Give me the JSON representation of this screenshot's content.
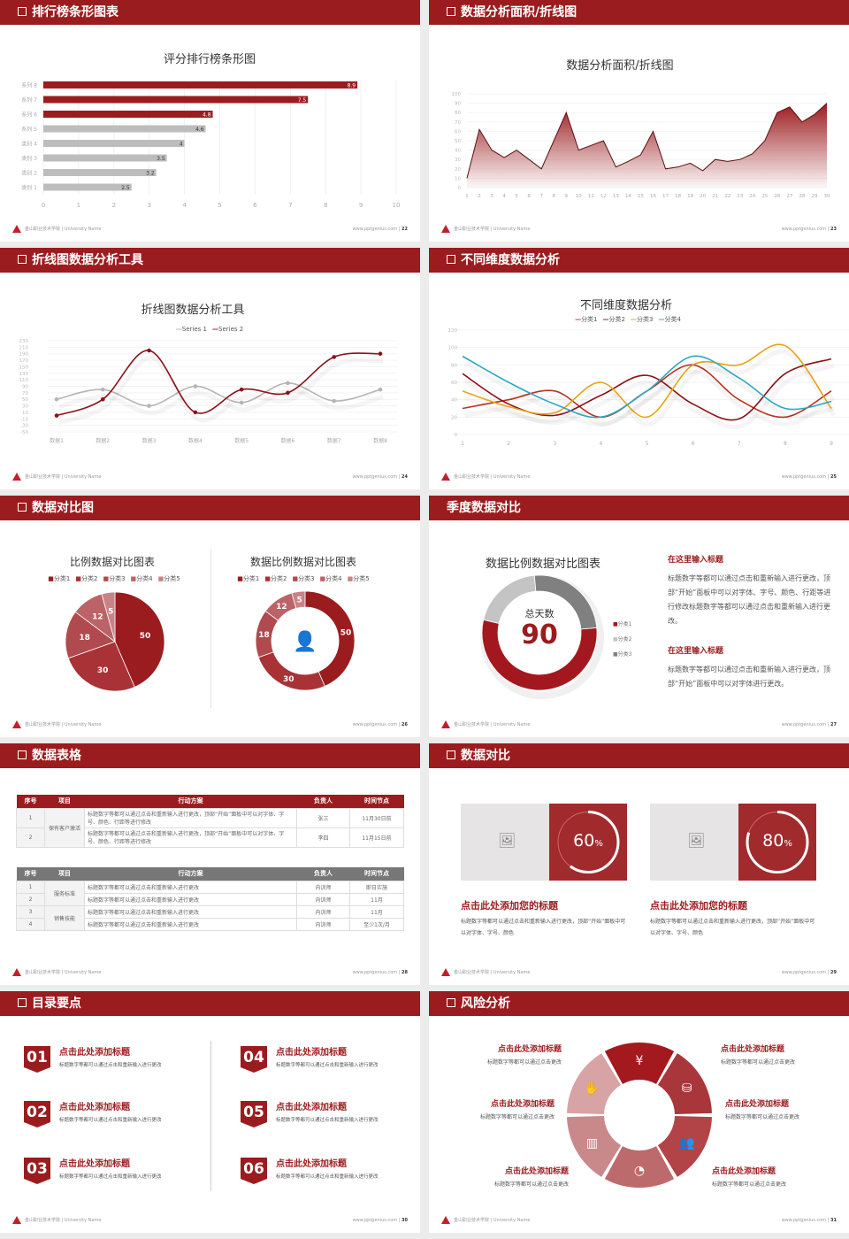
{
  "footer": {
    "school": "金山职业技术学院 | University Name",
    "site": "www.pptgenius.com"
  },
  "slides": [
    {
      "title": "排行榜条形图表",
      "page": "22",
      "chart_title": "评分排行榜条形图"
    },
    {
      "title": "数据分析面积/折线图",
      "page": "23",
      "chart_title": "数据分析面积/折线图"
    },
    {
      "title": "折线图数据分析工具",
      "page": "24",
      "chart_title": "折线图数据分析工具"
    },
    {
      "title": "不同维度数据分析",
      "page": "25",
      "chart_title": "不同维度数据分析"
    },
    {
      "title": "数据对比图",
      "page": "26",
      "chart_title_1": "比例数据对比图表",
      "chart_title_2": "数据比例数据对比图表"
    },
    {
      "title": "季度数据对比",
      "page": "27",
      "chart_title": "数据比例数据对比图表",
      "center_label": "总天数",
      "center_value": "90",
      "blocks": [
        {
          "heading": "在这里输入标题",
          "text": "标题数字等都可以通过点击和重新输入进行更改，顶部“开始”面板中可以对字体、字号、颜色、行距等进行修改标题数字等都可以通过点击和重新输入进行更改。"
        },
        {
          "heading": "在这里输入标题",
          "text": "标题数字等都可以通过点击和重新输入进行更改，顶部“开始”面板中可以对字体进行更改。"
        }
      ]
    },
    {
      "title": "数据表格",
      "page": "28",
      "table1": {
        "headers": [
          "序号",
          "项目",
          "行动方案",
          "负责人",
          "时间节点"
        ],
        "group": "保有客户激活",
        "rows": [
          [
            "1",
            "标题数字等都可以通过点击和重新输入进行更改，顶部“开始”面板中可以对字体、字号、颜色、行距等进行修改",
            "张三",
            "11月30日前"
          ],
          [
            "2",
            "标题数字等都可以通过点击和重新输入进行更改，顶部“开始”面板中可以对字体、字号、颜色、行距等进行修改",
            "李四",
            "11月15日前"
          ]
        ]
      },
      "table2": {
        "headers": [
          "序号",
          "项目",
          "行动方案",
          "负责人",
          "时间节点"
        ],
        "groups": [
          "服务标准",
          "销售技能"
        ],
        "rows": [
          [
            "1",
            "标题数字等都可以通过点击和重新输入进行更改",
            "内训师",
            "即日实施"
          ],
          [
            "2",
            "标题数字等都可以通过点击和重新输入进行更改",
            "内训师",
            "11月"
          ],
          [
            "3",
            "标题数字等都可以通过点击和重新输入进行更改",
            "内训师",
            "11月"
          ],
          [
            "4",
            "标题数字等都可以通过点击和重新输入进行更改",
            "内训师",
            "至少1次/月"
          ]
        ]
      }
    },
    {
      "title": "数据对比",
      "page": "29",
      "cards": [
        {
          "percent": 60,
          "value": "60",
          "unit": "%",
          "heading": "点击此处添加您的标题",
          "text": "标题数字等都可以通过点击和重新输入进行更改，顶部“开始”面板中可以对字体、字号、颜色"
        },
        {
          "percent": 80,
          "value": "80",
          "unit": "%",
          "heading": "点击此处添加您的标题",
          "text": "标题数字等都可以通过点击和重新输入进行更改，顶部“开始”面板中可以对字体、字号、颜色"
        }
      ]
    },
    {
      "title": "目录要点",
      "page": "30",
      "items": [
        {
          "num": "01",
          "heading": "点击此处添加标题",
          "text": "标题数字等都可以通过点击和重新输入进行更改"
        },
        {
          "num": "02",
          "heading": "点击此处添加标题",
          "text": "标题数字等都可以通过点击和重新输入进行更改"
        },
        {
          "num": "03",
          "heading": "点击此处添加标题",
          "text": "标题数字等都可以通过点击和重新输入进行更改"
        },
        {
          "num": "04",
          "heading": "点击此处添加标题",
          "text": "标题数字等都可以通过点击和重新输入进行更改"
        },
        {
          "num": "05",
          "heading": "点击此处添加标题",
          "text": "标题数字等都可以通过点击和重新输入进行更改"
        },
        {
          "num": "06",
          "heading": "点击此处添加标题",
          "text": "标题数字等都可以通过点击和重新输入进行更改"
        }
      ]
    },
    {
      "title": "风险分析",
      "page": "31",
      "items": [
        {
          "heading": "点击此处添加标题",
          "text": "标题数字等都可以通过点击更改",
          "icon": "money-bag-icon"
        },
        {
          "heading": "点击此处添加标题",
          "text": "标题数字等都可以通过点击更改",
          "icon": "coins-icon"
        },
        {
          "heading": "点击此处添加标题",
          "text": "标题数字等都可以通过点击更改",
          "icon": "users-icon"
        },
        {
          "heading": "点击此处添加标题",
          "text": "标题数字等都可以通过点击更改",
          "icon": "pie-chart-icon"
        },
        {
          "heading": "点击此处添加标题",
          "text": "标题数字等都可以通过点击更改",
          "icon": "building-icon"
        },
        {
          "heading": "点击此处添加标题",
          "text": "标题数字等都可以通过点击更改",
          "icon": "hand-money-icon"
        }
      ]
    }
  ],
  "colors": {
    "brand": "#9b1c1f",
    "gray": "#bdbdbd",
    "dark_gray": "#7a7a7a"
  },
  "chart_data": [
    {
      "type": "bar",
      "orientation": "horizontal",
      "title": "评分排行榜条形图",
      "categories": [
        "系列 8",
        "系列 7",
        "系列 6",
        "系列 5",
        "类别 4",
        "类别 3",
        "类别 2",
        "类别 1"
      ],
      "values": [
        8.9,
        7.5,
        4.8,
        4.6,
        4,
        3.5,
        3.2,
        2.5
      ],
      "value_labels": [
        "8.9",
        "7.5",
        "4.8",
        "4.6",
        "4",
        "3.5",
        "3.2",
        "2.5"
      ],
      "highlight_top": 3,
      "xlim": [
        0,
        10
      ],
      "xticks": [
        "0",
        "1",
        "2",
        "3",
        "4",
        "5",
        "6",
        "7",
        "8",
        "9",
        "10"
      ]
    },
    {
      "type": "area",
      "title": "数据分析面积/折线图",
      "x": [
        "1",
        "2",
        "3",
        "4",
        "5",
        "6",
        "7",
        "8",
        "9",
        "10",
        "11",
        "12",
        "13",
        "14",
        "15",
        "16",
        "17",
        "18",
        "19",
        "20",
        "21",
        "22",
        "23",
        "24",
        "25",
        "26",
        "27",
        "28",
        "29",
        "30"
      ],
      "values": [
        10,
        62,
        40,
        32,
        40,
        30,
        20,
        50,
        80,
        40,
        45,
        50,
        22,
        28,
        35,
        60,
        20,
        22,
        26,
        18,
        30,
        28,
        30,
        36,
        50,
        80,
        86,
        70,
        78,
        90
      ],
      "ylim": [
        0,
        100
      ],
      "yticks": [
        "0",
        "10",
        "20",
        "30",
        "40",
        "50",
        "60",
        "70",
        "80",
        "90",
        "100"
      ]
    },
    {
      "type": "line",
      "smooth": true,
      "title": "折线图数据分析工具",
      "categories": [
        "数据1",
        "数据2",
        "数据3",
        "数据4",
        "数据5",
        "数据6",
        "数据7",
        "数据8"
      ],
      "series": [
        {
          "name": "Series 1",
          "values": [
            50,
            80,
            30,
            90,
            40,
            100,
            45,
            80
          ],
          "color": "#b5b5b5"
        },
        {
          "name": "Series 2",
          "values": [
            0,
            50,
            200,
            10,
            80,
            70,
            180,
            190
          ],
          "color": "#8b1218"
        }
      ],
      "ylim": [
        -50,
        230
      ],
      "yticks": [
        "-50",
        "-30",
        "-10",
        "10",
        "30",
        "50",
        "70",
        "90",
        "110",
        "130",
        "150",
        "170",
        "190",
        "210",
        "230"
      ],
      "legend": "top"
    },
    {
      "type": "line",
      "smooth": true,
      "title": "不同维度数据分析",
      "categories": [
        "1",
        "2",
        "3",
        "4",
        "5",
        "6",
        "7",
        "8",
        "9"
      ],
      "series": [
        {
          "name": "分类1",
          "values": [
            30,
            40,
            50,
            20,
            50,
            80,
            40,
            20,
            50
          ],
          "color": "#b8321f"
        },
        {
          "name": "分类2",
          "values": [
            70,
            35,
            22,
            45,
            68,
            35,
            18,
            70,
            87
          ],
          "color": "#8b0f14"
        },
        {
          "name": "分类3",
          "values": [
            50,
            32,
            25,
            60,
            20,
            80,
            80,
            102,
            30
          ],
          "color": "#e8a317"
        },
        {
          "name": "分类4",
          "values": [
            90,
            60,
            35,
            20,
            50,
            90,
            65,
            30,
            38
          ],
          "color": "#2aa7c0"
        }
      ],
      "ylim": [
        0,
        120
      ],
      "yticks": [
        "0",
        "20",
        "40",
        "60",
        "80",
        "100",
        "120"
      ],
      "legend": "top"
    },
    {
      "type": "pie",
      "title": "比例数据对比图表",
      "labels": [
        "分类1",
        "分类2",
        "分类3",
        "分类4",
        "分类5"
      ],
      "values": [
        50,
        30,
        18,
        12,
        5
      ],
      "colors": [
        "#9b1c1f",
        "#a83236",
        "#b04a4e",
        "#bb6367",
        "#c98386"
      ]
    },
    {
      "type": "pie",
      "donut": true,
      "title": "数据比例数据对比图表",
      "labels": [
        "分类1",
        "分类2",
        "分类3",
        "分类4",
        "分类5"
      ],
      "values": [
        50,
        30,
        18,
        12,
        5
      ],
      "colors": [
        "#9b1c1f",
        "#a83236",
        "#b04a4e",
        "#bb6367",
        "#c98386"
      ],
      "center_icon": "customer-service-icon"
    },
    {
      "type": "pie",
      "donut": true,
      "title": "数据比例数据对比图表",
      "labels": [
        "分类1",
        "分类2",
        "分类3"
      ],
      "values": [
        55,
        20,
        25
      ],
      "colors": [
        "#a3181e",
        "#c4c4c4",
        "#808080"
      ]
    }
  ]
}
